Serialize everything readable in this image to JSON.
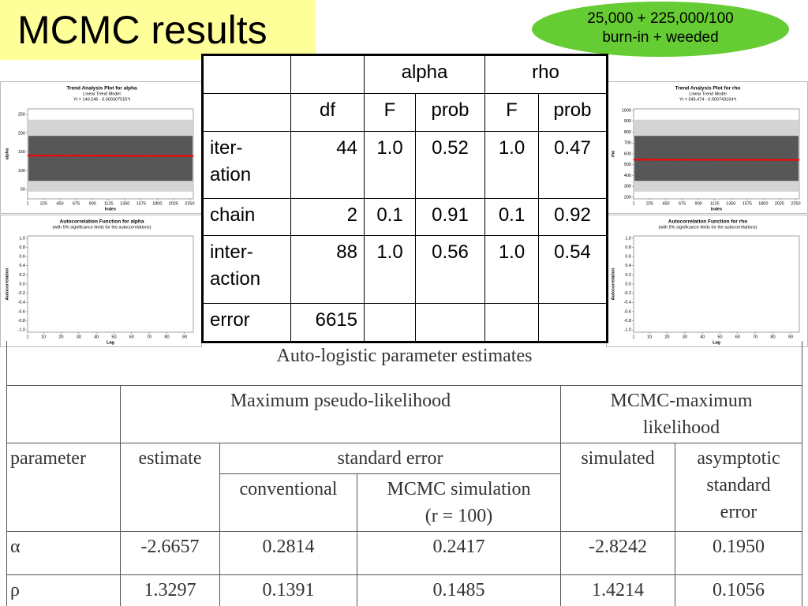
{
  "header": {
    "title": "MCMC results"
  },
  "callout": {
    "lines": [
      "25,000 + 225,000/100",
      "burn-in + weeded"
    ]
  },
  "anova_table": {
    "group_header": [
      "alpha",
      "rho"
    ],
    "column_header": [
      "df",
      "F",
      "prob",
      "F",
      "prob"
    ],
    "rows": [
      [
        "iter-\nation",
        "44",
        "1.0",
        "0.52",
        "1.0",
        "0.47"
      ],
      [
        "chain",
        "2",
        "0.1",
        "0.91",
        "0.1",
        "0.92"
      ],
      [
        "inter-\naction",
        "88",
        "1.0",
        "0.56",
        "1.0",
        "0.54"
      ],
      [
        "error",
        "6615",
        "",
        "",
        "",
        ""
      ]
    ]
  },
  "estimates_table": {
    "title": "Auto-logistic parameter estimates",
    "group_header": [
      "Maximum pseudo-likelihood",
      "MCMC-maximum\nlikelihood"
    ],
    "column_header": [
      "parameter",
      "estimate",
      "standard error",
      "simulated",
      "asymptotic\nstandard\nerror"
    ],
    "sub_header": [
      "conventional",
      "MCMC simulation\n(r = 100)"
    ],
    "rows": [
      [
        "α",
        "-2.6657",
        "0.2814",
        "0.2417",
        "-2.8242",
        "0.1950"
      ],
      [
        "ρ",
        "1.3297",
        "0.1391",
        "0.1485",
        "1.4214",
        "0.1056"
      ]
    ]
  },
  "plots": {
    "trend_alpha": {
      "type": "trend",
      "title": "Trend Analysis Plot for alpha",
      "subtitle": "Linear Trend Model",
      "equation": "Yt = 140.246 - 0.000307515*t",
      "ylabel": "alpha",
      "xlabel": "Index",
      "trend": {
        "intercept": 140.246,
        "slope": -0.000307515
      },
      "color": "#ff0000",
      "xlim": [
        1,
        2300
      ],
      "xticks": [
        1,
        225,
        450,
        675,
        900,
        1125,
        1350,
        1575,
        1800,
        2025,
        2250
      ],
      "ylim": [
        25,
        265
      ],
      "yticks": [
        50,
        100,
        150,
        200,
        250
      ]
    },
    "trend_rho": {
      "type": "trend",
      "title": "Trend Analysis Plot for rho",
      "subtitle": "Linear Trend Model",
      "equation": "Yt = 546.474 - 0.000743164*t",
      "ylabel": "rho",
      "xlabel": "Index",
      "trend": {
        "intercept": 546.474,
        "slope": -0.000743164
      },
      "color": "#ff0000",
      "xlim": [
        1,
        2300
      ],
      "xticks": [
        1,
        225,
        450,
        675,
        900,
        1125,
        1350,
        1575,
        1800,
        2025,
        2250
      ],
      "ylim": [
        185,
        1015
      ],
      "yticks": [
        200,
        300,
        400,
        500,
        600,
        700,
        800,
        900,
        1000
      ]
    },
    "acf_alpha": {
      "type": "acf",
      "title": "Autocorrelation Function for alpha",
      "subtitle": "(with 5% significance limits for the autocorrelations)",
      "ylabel": "Autocorrelation",
      "xlabel": "Lag",
      "xlim": [
        1,
        95
      ],
      "xticks": [
        1,
        10,
        20,
        30,
        40,
        50,
        60,
        70,
        80,
        90
      ],
      "ylim": [
        -1.05,
        1.05
      ],
      "yticks": [
        {
          "value": 1.0,
          "label": "1.0"
        },
        {
          "value": 0.8,
          "label": "0.8"
        },
        {
          "value": 0.6,
          "label": "0.6"
        },
        {
          "value": 0.4,
          "label": "0.4"
        },
        {
          "value": 0.2,
          "label": "0.2"
        },
        {
          "value": 0,
          "label": "0.0"
        },
        {
          "value": -0.2,
          "label": "-0.2"
        },
        {
          "value": -0.4,
          "label": "-0.4"
        },
        {
          "value": -0.6,
          "label": "-0.6"
        },
        {
          "value": -0.8,
          "label": "-0.8"
        },
        {
          "value": -1.0,
          "label": "-1.0"
        }
      ]
    },
    "acf_rho": {
      "type": "acf",
      "title": "Autocorrelation Function for rho",
      "subtitle": "(with 5% significance limits for the autocorrelations)",
      "ylabel": "Autocorrelation",
      "xlabel": "Lag",
      "xlim": [
        1,
        95
      ],
      "xticks": [
        1,
        10,
        20,
        30,
        40,
        50,
        60,
        70,
        80,
        90
      ],
      "ylim": [
        -1.05,
        1.05
      ],
      "yticks": [
        {
          "value": 1.0,
          "label": "1.0"
        },
        {
          "value": 0.8,
          "label": "0.8"
        },
        {
          "value": 0.6,
          "label": "0.6"
        },
        {
          "value": 0.4,
          "label": "0.4"
        },
        {
          "value": 0.2,
          "label": "0.2"
        },
        {
          "value": 0,
          "label": "0.0"
        },
        {
          "value": -0.2,
          "label": "-0.2"
        },
        {
          "value": -0.4,
          "label": "-0.4"
        },
        {
          "value": -0.6,
          "label": "-0.6"
        },
        {
          "value": -0.8,
          "label": "-0.8"
        },
        {
          "value": -1.0,
          "label": "-1.0"
        }
      ]
    }
  }
}
